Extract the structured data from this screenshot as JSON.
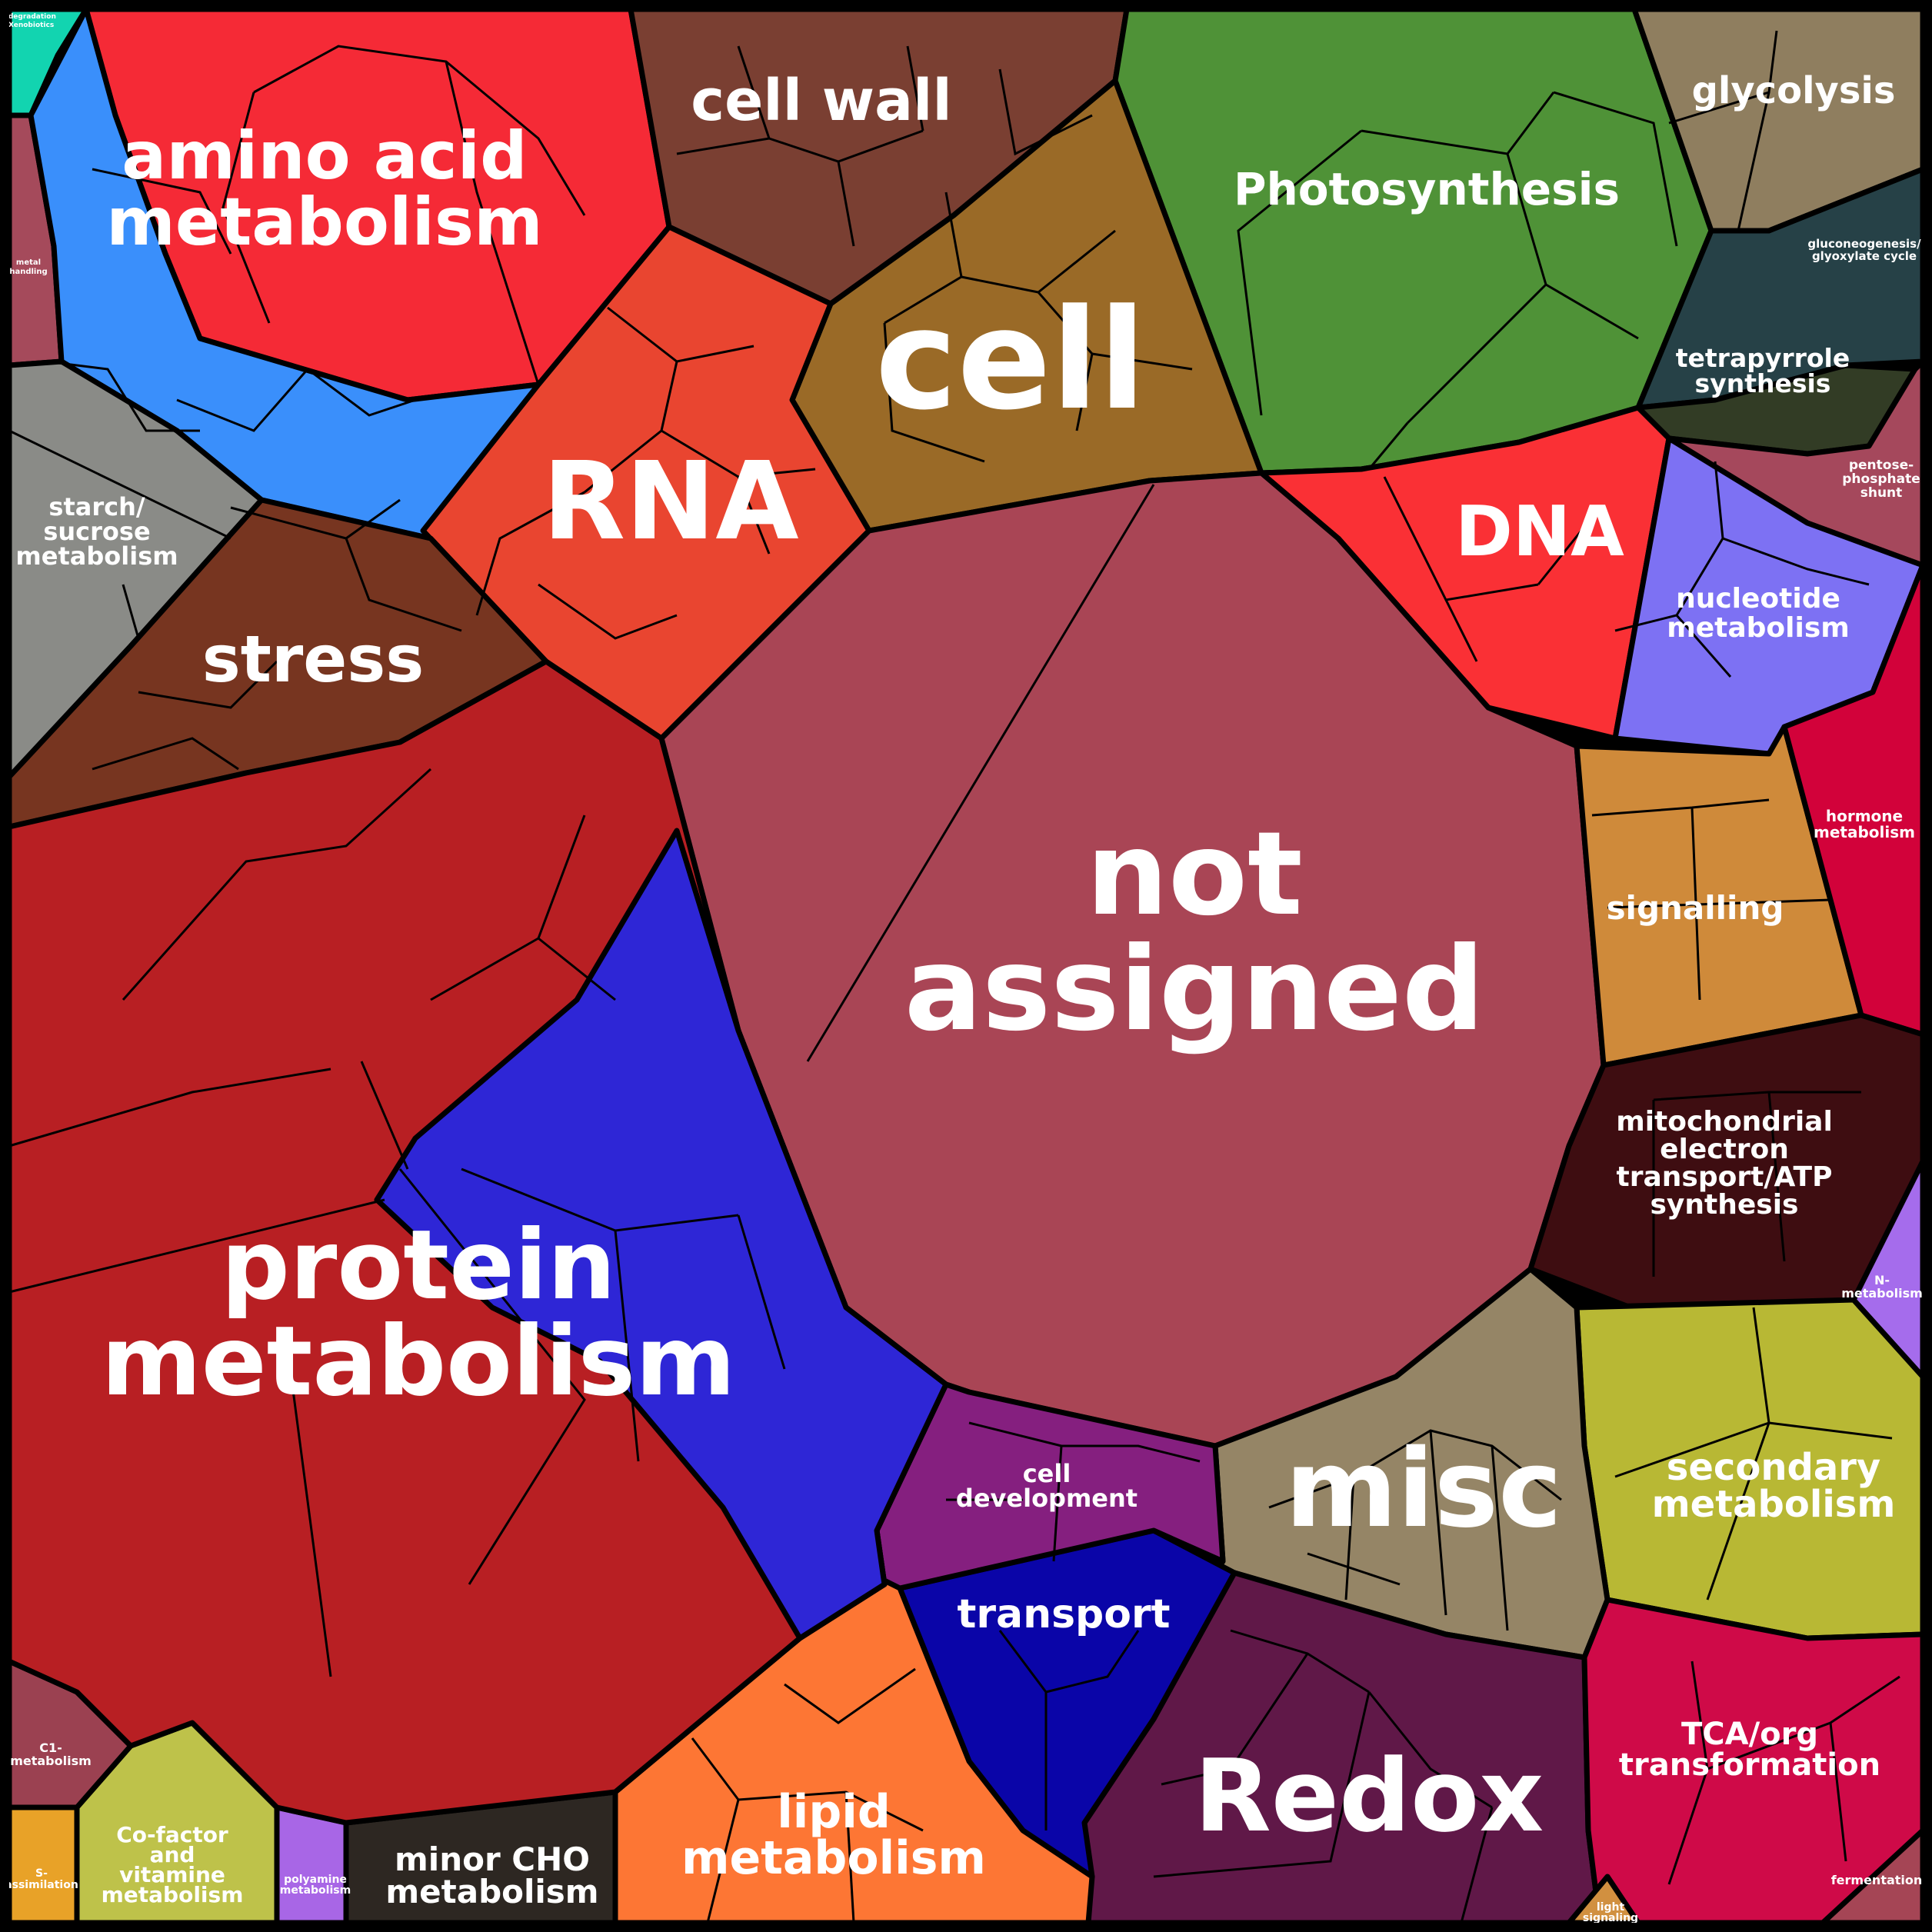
{
  "colors": {
    "stroke": "#000000",
    "label": "#ffffff"
  },
  "categories": [
    {
      "id": "biodegradation",
      "lines": [
        "biodegradation",
        "of Xenobiotics"
      ],
      "color": "#12d4b0"
    },
    {
      "id": "metal-handling",
      "lines": [
        "metal",
        "handling"
      ],
      "color": "#a54a5b"
    },
    {
      "id": "amino-acid",
      "lines": [
        "amino acid",
        "metabolism"
      ],
      "color": "#f52a36"
    },
    {
      "id": "amino-acid-blue",
      "lines": [],
      "color": "#3a8ffb"
    },
    {
      "id": "cell-wall",
      "lines": [
        "cell wall"
      ],
      "color": "#7a3f32"
    },
    {
      "id": "photosynthesis",
      "lines": [
        "Photosynthesis"
      ],
      "color": "#4f9237"
    },
    {
      "id": "glycolysis",
      "lines": [
        "glycolysis"
      ],
      "color": "#8f7e5f"
    },
    {
      "id": "gluconeogenesis",
      "lines": [
        "gluconeogenesis/",
        "glyoxylate cycle"
      ],
      "color": "#264147"
    },
    {
      "id": "tetrapyrrole",
      "lines": [
        "tetrapyrrole",
        "synthesis"
      ],
      "color": "#323c25"
    },
    {
      "id": "pentose",
      "lines": [
        "pentose-",
        "phosphate",
        "shunt"
      ],
      "color": "#a5485c"
    },
    {
      "id": "cell",
      "lines": [
        "cell"
      ],
      "color": "#9a6a27"
    },
    {
      "id": "rna",
      "lines": [
        "RNA"
      ],
      "color": "#e94530"
    },
    {
      "id": "starch",
      "lines": [
        "starch/",
        "sucrose",
        "metabolism"
      ],
      "color": "#8a8b87"
    },
    {
      "id": "stress",
      "lines": [
        "stress"
      ],
      "color": "#773520"
    },
    {
      "id": "dna",
      "lines": [
        "DNA"
      ],
      "color": "#fa3035"
    },
    {
      "id": "nucleotide",
      "lines": [
        "nucleotide",
        "metabolism"
      ],
      "color": "#7d71f3"
    },
    {
      "id": "not-assigned",
      "lines": [
        "not",
        "assigned"
      ],
      "color": "#a94555"
    },
    {
      "id": "signalling",
      "lines": [
        "signalling"
      ],
      "color": "#cf8a3a"
    },
    {
      "id": "hormone",
      "lines": [
        "hormone",
        "metabolism"
      ],
      "color": "#d2023a"
    },
    {
      "id": "mito",
      "lines": [
        "mitochondrial",
        "electron",
        "transport/ATP",
        "synthesis"
      ],
      "color": "#3e0d11"
    },
    {
      "id": "n-metabolism",
      "lines": [
        "N-",
        "metabolism"
      ],
      "color": "#a56cec"
    },
    {
      "id": "secondary",
      "lines": [
        "secondary",
        "metabolism"
      ],
      "color": "#b8b834"
    },
    {
      "id": "misc",
      "lines": [
        "misc"
      ],
      "color": "#958566"
    },
    {
      "id": "redox",
      "lines": [
        "Redox"
      ],
      "color": "#601848"
    },
    {
      "id": "tca",
      "lines": [
        "TCA/org",
        "transformation"
      ],
      "color": "#cf0a48"
    },
    {
      "id": "fermentation",
      "lines": [
        "fermentation"
      ],
      "color": "#a54555"
    },
    {
      "id": "light-signaling",
      "lines": [
        "light",
        "signaling"
      ],
      "color": "#d19040"
    },
    {
      "id": "transport",
      "lines": [
        "transport"
      ],
      "color": "#0a05a8"
    },
    {
      "id": "cell-development",
      "lines": [
        "cell",
        "development"
      ],
      "color": "#851f7f"
    },
    {
      "id": "lipid",
      "lines": [
        "lipid",
        "metabolism"
      ],
      "color": "#fd7634"
    },
    {
      "id": "minor-cho",
      "lines": [
        "minor CHO",
        "metabolism"
      ],
      "color": "#2d2722"
    },
    {
      "id": "polyamine",
      "lines": [
        "polyamine",
        "metabolism"
      ],
      "color": "#a866e6"
    },
    {
      "id": "cofactor",
      "lines": [
        "Co-factor",
        "and",
        "vitamine",
        "metabolism"
      ],
      "color": "#bec24a"
    },
    {
      "id": "s-assimilation",
      "lines": [
        "S-",
        "assimilation"
      ],
      "color": "#e8a228"
    },
    {
      "id": "c1",
      "lines": [
        "C1-",
        "metabolism"
      ],
      "color": "#9b4151"
    },
    {
      "id": "protein",
      "lines": [
        "protein",
        "metabolism"
      ],
      "color": "#b81f23"
    },
    {
      "id": "protein-blue",
      "lines": [],
      "color": "#2e26d6"
    }
  ]
}
